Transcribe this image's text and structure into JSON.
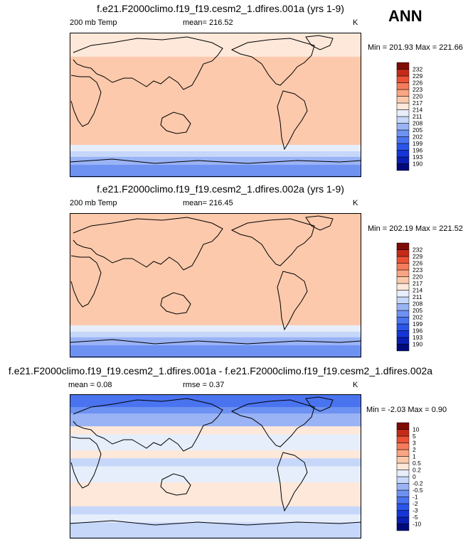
{
  "season": "ANN",
  "chart_data": [
    {
      "type": "heatmap",
      "title": "f.e21.F2000climo.f19_f19.cesm2_1.dfires.001a (yrs 1-9)",
      "variable_label": "200 mb Temp",
      "units": "K",
      "mean_label": "mean= 216.52",
      "minmax_label": "Min = 201.93 Max = 221.66",
      "mean": 216.52,
      "min": 201.93,
      "max": 221.66,
      "levels": [
        "190",
        "193",
        "196",
        "199",
        "202",
        "205",
        "208",
        "211",
        "214",
        "217",
        "220",
        "223",
        "226",
        "229",
        "232"
      ],
      "colors": [
        "#000a7a",
        "#0a1fb4",
        "#1535d8",
        "#2b55ea",
        "#4a73f0",
        "#6e92f2",
        "#9ab3f5",
        "#c6d7fa",
        "#e6eefb",
        "#fde8da",
        "#fcc9ac",
        "#f9a584",
        "#f47c5b",
        "#eb5236",
        "#c52a18",
        "#7f0b06"
      ],
      "bands": [
        {
          "lat": 90,
          "value": 216.3
        },
        {
          "lat": 80,
          "value": 216.0
        },
        {
          "lat": 70,
          "value": 216.3
        },
        {
          "lat": 60,
          "value": 217.2
        },
        {
          "lat": 50,
          "value": 218.0
        },
        {
          "lat": 40,
          "value": 219.3
        },
        {
          "lat": 30,
          "value": 219.7
        },
        {
          "lat": 20,
          "value": 218.2
        },
        {
          "lat": 10,
          "value": 217.3
        },
        {
          "lat": 0,
          "value": 217.1
        },
        {
          "lat": -10,
          "value": 217.5
        },
        {
          "lat": -20,
          "value": 218.3
        },
        {
          "lat": -30,
          "value": 218.7
        },
        {
          "lat": -40,
          "value": 217.4
        },
        {
          "lat": -50,
          "value": 213.0
        },
        {
          "lat": -58,
          "value": 209.3
        },
        {
          "lat": -65,
          "value": 206.5
        },
        {
          "lat": -75,
          "value": 204.8
        },
        {
          "lat": -90,
          "value": 203.5
        }
      ]
    },
    {
      "type": "heatmap",
      "title": "f.e21.F2000climo.f19_f19.cesm2_1.dfires.002a (yrs 1-9)",
      "variable_label": "200 mb Temp",
      "units": "K",
      "mean_label": "mean= 216.45",
      "minmax_label": "Min = 202.19 Max = 221.52",
      "mean": 216.45,
      "min": 202.19,
      "max": 221.52,
      "levels": [
        "190",
        "193",
        "196",
        "199",
        "202",
        "205",
        "208",
        "211",
        "214",
        "217",
        "220",
        "223",
        "226",
        "229",
        "232"
      ],
      "colors": [
        "#000a7a",
        "#0a1fb4",
        "#1535d8",
        "#2b55ea",
        "#4a73f0",
        "#6e92f2",
        "#9ab3f5",
        "#c6d7fa",
        "#e6eefb",
        "#fde8da",
        "#fcc9ac",
        "#f9a584",
        "#f47c5b",
        "#eb5236",
        "#c52a18",
        "#7f0b06"
      ],
      "bands": [
        {
          "lat": 90,
          "value": 217.8
        },
        {
          "lat": 80,
          "value": 218.3
        },
        {
          "lat": 70,
          "value": 218.0
        },
        {
          "lat": 60,
          "value": 218.2
        },
        {
          "lat": 50,
          "value": 218.6
        },
        {
          "lat": 40,
          "value": 219.6
        },
        {
          "lat": 30,
          "value": 219.8
        },
        {
          "lat": 20,
          "value": 218.4
        },
        {
          "lat": 10,
          "value": 217.6
        },
        {
          "lat": 0,
          "value": 217.3
        },
        {
          "lat": -10,
          "value": 217.6
        },
        {
          "lat": -20,
          "value": 218.5
        },
        {
          "lat": -30,
          "value": 219.0
        },
        {
          "lat": -40,
          "value": 217.6
        },
        {
          "lat": -50,
          "value": 213.3
        },
        {
          "lat": -58,
          "value": 209.5
        },
        {
          "lat": -65,
          "value": 206.6
        },
        {
          "lat": -75,
          "value": 204.9
        },
        {
          "lat": -90,
          "value": 203.7
        }
      ]
    },
    {
      "type": "heatmap",
      "title": "f.e21.F2000climo.f19_f19.cesm2_1.dfires.001a - f.e21.F2000climo.f19_f19.cesm2_1.dfires.002a",
      "variable_label": "",
      "units": "K",
      "mean_label": "mean =   0.08",
      "rmse_label": "rmse =   0.37",
      "minmax_label": "Min =  -2.03 Max =   0.90",
      "mean": 0.08,
      "rmse": 0.37,
      "min": -2.03,
      "max": 0.9,
      "levels": [
        "-10",
        "-5",
        "-3",
        "-2",
        "-1",
        "-0.5",
        "-0.2",
        "0",
        "0.2",
        "0.5",
        "1",
        "2",
        "3",
        "5",
        "10"
      ],
      "colors": [
        "#000a7a",
        "#0a1fb4",
        "#1535d8",
        "#2b55ea",
        "#4a73f0",
        "#6e92f2",
        "#9ab3f5",
        "#c6d7fa",
        "#e6eefb",
        "#fde8da",
        "#fcc9ac",
        "#f9a584",
        "#f47c5b",
        "#eb5236",
        "#c52a18",
        "#7f0b06"
      ],
      "bands": [
        {
          "lat": 90,
          "value": -1.6
        },
        {
          "lat": 82,
          "value": -1.4
        },
        {
          "lat": 74,
          "value": -0.6
        },
        {
          "lat": 66,
          "value": -0.4
        },
        {
          "lat": 58,
          "value": -0.3
        },
        {
          "lat": 50,
          "value": 0.3
        },
        {
          "lat": 40,
          "value": 0.1
        },
        {
          "lat": 30,
          "value": 0.1
        },
        {
          "lat": 20,
          "value": 0.3
        },
        {
          "lat": 10,
          "value": -0.1
        },
        {
          "lat": 0,
          "value": 0.1
        },
        {
          "lat": -10,
          "value": 0.1
        },
        {
          "lat": -20,
          "value": 0.3
        },
        {
          "lat": -30,
          "value": 0.4
        },
        {
          "lat": -40,
          "value": 0.2
        },
        {
          "lat": -50,
          "value": -0.1
        },
        {
          "lat": -60,
          "value": 0.1
        },
        {
          "lat": -70,
          "value": -0.1
        },
        {
          "lat": -90,
          "value": 0.1
        }
      ]
    }
  ]
}
